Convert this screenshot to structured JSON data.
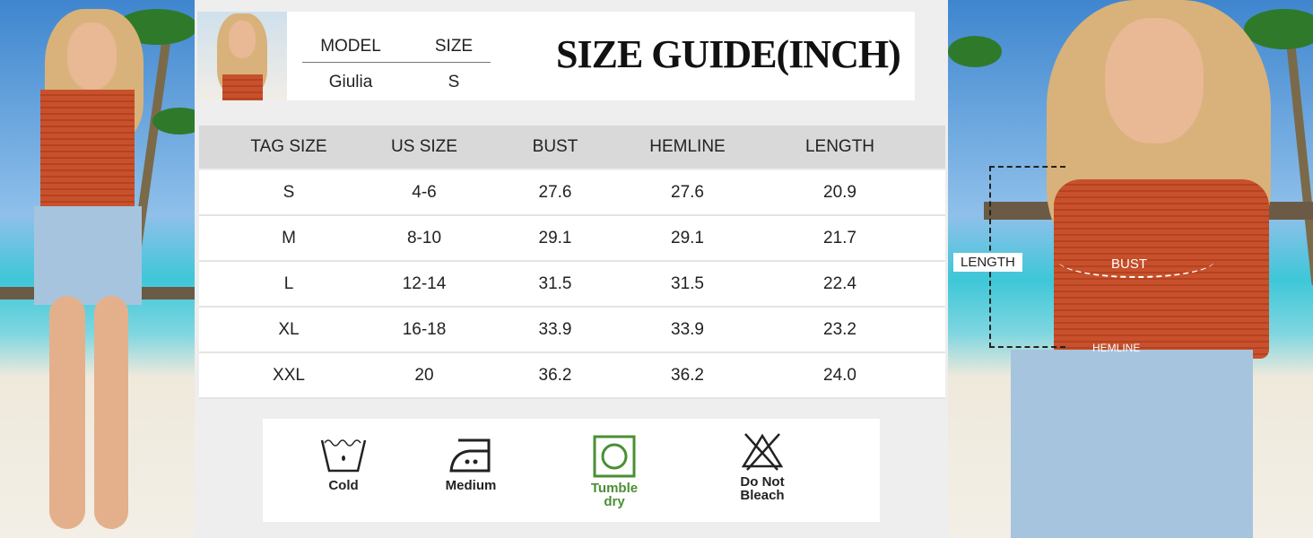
{
  "header": {
    "title": "SIZE GUIDE(INCH)",
    "model_col": "MODEL",
    "size_col": "SIZE",
    "model_name": "Giulia",
    "model_size": "S"
  },
  "table": {
    "columns": [
      "TAG SIZE",
      "US SIZE",
      "BUST",
      "HEMLINE",
      "LENGTH"
    ],
    "rows": [
      [
        "S",
        "4-6",
        "27.6",
        "27.6",
        "20.9"
      ],
      [
        "M",
        "8-10",
        "29.1",
        "29.1",
        "21.7"
      ],
      [
        "L",
        "12-14",
        "31.5",
        "31.5",
        "22.4"
      ],
      [
        "XL",
        "16-18",
        "33.9",
        "33.9",
        "23.2"
      ],
      [
        "XXL",
        "20",
        "36.2",
        "36.2",
        "24.0"
      ]
    ]
  },
  "care": [
    {
      "icon": "wash-cold-icon",
      "label": "Cold",
      "color": "#222222"
    },
    {
      "icon": "iron-medium-icon",
      "label": "Medium",
      "color": "#222222"
    },
    {
      "icon": "tumble-dry-icon",
      "label": "Tumble dry",
      "color": "#4a8f34"
    },
    {
      "icon": "do-not-bleach-icon",
      "label": "Do Not Bleach",
      "color": "#222222"
    }
  ],
  "measure_labels": {
    "length": "LENGTH",
    "bust": "BUST",
    "hemline": "HEMLINE"
  }
}
